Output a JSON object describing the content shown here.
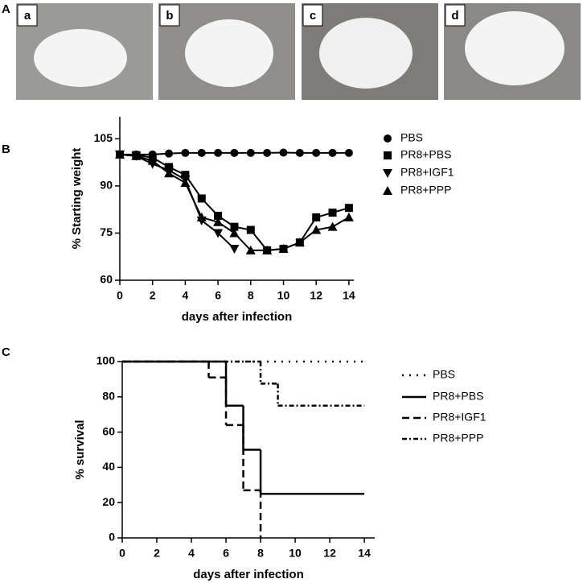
{
  "panel_labels": [
    "A",
    "B",
    "C"
  ],
  "photo_labels": [
    "a",
    "b",
    "c",
    "d"
  ],
  "chart_data": [
    {
      "type": "line",
      "ylabel": "% Starting weight",
      "xlabel": "days  after infection",
      "x": [
        0,
        1,
        2,
        3,
        4,
        5,
        6,
        7,
        8,
        9,
        10,
        11,
        12,
        13,
        14
      ],
      "xlim": [
        0,
        14.3
      ],
      "xticks": [
        0,
        2,
        4,
        6,
        8,
        10,
        12,
        14
      ],
      "ylim": [
        60,
        112
      ],
      "yticks": [
        60,
        75,
        90,
        105
      ],
      "series": [
        {
          "name": "PBS",
          "color": "#000000",
          "marker": "circle",
          "values": [
            100,
            100,
            100,
            100.3,
            100.5,
            100.5,
            100.5,
            100.5,
            100.5,
            100.5,
            100.6,
            100.5,
            100.5,
            100.5,
            100.5
          ]
        },
        {
          "name": "PR8+PBS",
          "color": "#000000",
          "marker": "square",
          "values": [
            100,
            99.8,
            99,
            96,
            93.5,
            86,
            80.5,
            77,
            76,
            69.5,
            70,
            72,
            80,
            81.5,
            83
          ]
        },
        {
          "name": "PR8+IGF1",
          "color": "#000000",
          "marker": "triangle-down",
          "values": [
            100,
            99.5,
            97,
            95,
            92,
            79,
            75,
            70,
            null,
            null,
            null,
            null,
            null,
            null,
            null
          ]
        },
        {
          "name": "PR8+PPP",
          "color": "#000000",
          "marker": "triangle-up",
          "values": [
            100,
            99.5,
            98,
            94,
            91,
            80,
            78.5,
            75,
            69.5,
            69.5,
            70,
            72,
            76,
            77,
            80
          ]
        }
      ]
    },
    {
      "type": "step",
      "ylabel": "% survival",
      "xlabel": "days  after  infection",
      "xlim": [
        0,
        14.6
      ],
      "xticks": [
        0,
        2,
        4,
        6,
        8,
        10,
        12,
        14
      ],
      "ylim": [
        0,
        100
      ],
      "yticks": [
        0,
        20,
        40,
        60,
        80,
        100
      ],
      "series": [
        {
          "name": "PBS",
          "color": "#000000",
          "line_style": "dotted",
          "x": [
            0,
            14
          ],
          "values": [
            100,
            100
          ]
        },
        {
          "name": "PR8+PBS",
          "color": "#000000",
          "line_style": "solid",
          "x": [
            0,
            6,
            7,
            8,
            14
          ],
          "values": [
            100,
            75,
            50,
            25,
            25
          ]
        },
        {
          "name": "PR8+IGF1",
          "color": "#000000",
          "line_style": "dashed",
          "x": [
            0,
            5,
            6,
            7,
            8
          ],
          "values": [
            100,
            91,
            64,
            27,
            0
          ]
        },
        {
          "name": "PR8+PPP",
          "color": "#000000",
          "line_style": "dash-dot",
          "x": [
            0,
            8,
            9,
            14
          ],
          "values": [
            100,
            87.5,
            75,
            75
          ]
        }
      ]
    }
  ]
}
